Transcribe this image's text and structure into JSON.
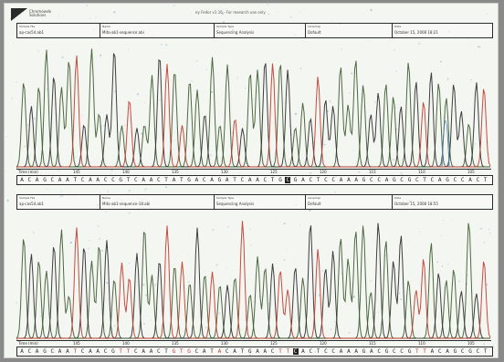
{
  "sheet": {
    "title": "ey Fedor v1.16 - For research use only",
    "logo_text": [
      "Chromoweb",
      "Solutions"
    ]
  },
  "colors": {
    "trace_dark": "#3c5a2e",
    "trace_red": "#c0392b",
    "trace_blue": "#4a7fb5",
    "trace_black": "#2a2a2a",
    "paper": "#f4f6f2",
    "speckle": "#9bb7d6"
  },
  "panels": [
    {
      "id": "top",
      "header": [
        {
          "label": "Sample File",
          "value": "ap-cas54.ab1"
        },
        {
          "label": "Name",
          "value": "Mito-ab1-sequence.abi"
        },
        {
          "label": "Sample Type",
          "value": "Sequencing Analysis"
        },
        {
          "label": "Lane/Cap",
          "value": "Default"
        },
        {
          "label": "Date",
          "value": "October 15, 2008 18:21"
        }
      ],
      "axis_label": "Time (min)",
      "ticks": [
        "145",
        "140",
        "135",
        "130",
        "125",
        "120",
        "115",
        "110",
        "105"
      ],
      "sequence": "ACAGCAATCAACCGTCAACTATGACAGATCAACTGCGACTCCAAAGCCAGCGCTCAGCCACT",
      "red_positions": [],
      "selected_position": 35,
      "peaks": 62,
      "seed": 7
    },
    {
      "id": "bottom",
      "header": [
        {
          "label": "Sample File",
          "value": "ap-cas54.ab1"
        },
        {
          "label": "Name",
          "value": "Mito-ab1-sequence-18.abi"
        },
        {
          "label": "Sample Type",
          "value": "Sequencing Analysis"
        },
        {
          "label": "Lane/Cap",
          "value": "Default"
        },
        {
          "label": "Date",
          "value": "October 15, 2008 18:55"
        }
      ],
      "axis_label": "Time (min)",
      "ticks": [
        "145",
        "140",
        "135",
        "130",
        "125",
        "120",
        "115",
        "110",
        "105"
      ],
      "sequence": "ACAGCAATCAACGTTCAACTGTGCATACATGAACTTCACTCCAAAGACGCCGTTACAGCGCT",
      "red_positions": [
        7,
        13,
        14,
        20,
        21,
        22,
        26,
        34,
        35,
        52,
        53
      ],
      "selected_position": 36,
      "peaks": 62,
      "seed": 21
    }
  ]
}
